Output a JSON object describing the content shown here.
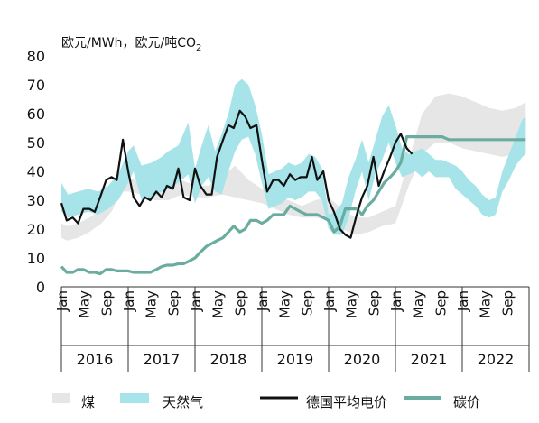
{
  "chart_data": {
    "type": "area",
    "ylabel": "欧元/MWh，欧元/吨CO",
    "ylabel_sub": "2",
    "ylim": [
      0,
      80
    ],
    "yticks": [
      0,
      10,
      20,
      30,
      40,
      50,
      60,
      70,
      80
    ],
    "xlim": [
      2016.0,
      2023.0
    ],
    "month_labels": [
      "Jan",
      "May",
      "Sep"
    ],
    "years": [
      "2016",
      "2017",
      "2018",
      "2019",
      "2020",
      "2021",
      "2022"
    ],
    "legend_position": "bottom",
    "colors": {
      "coal": "#e6e6e6",
      "gas": "#a6e4ea",
      "power": "#111111",
      "carbon": "#6aada0",
      "axis": "#333333"
    },
    "series": [
      {
        "name": "煤",
        "kind": "band",
        "x": [
          2016.0,
          2016.08,
          2016.25,
          2016.42,
          2016.6,
          2016.75,
          2016.9,
          2017.0,
          2017.2,
          2017.4,
          2017.6,
          2017.8,
          2018.0,
          2018.2,
          2018.4,
          2018.6,
          2018.8,
          2019.0,
          2019.2,
          2019.4,
          2019.6,
          2019.8,
          2020.0,
          2020.2,
          2020.4,
          2020.6,
          2020.8,
          2021.0,
          2021.2,
          2021.4,
          2021.6,
          2021.8,
          2022.0,
          2022.2,
          2022.4,
          2022.6,
          2022.8,
          2022.95
        ],
        "low": [
          17,
          16,
          17,
          19,
          22,
          26,
          33,
          33,
          32,
          30,
          30,
          32,
          31,
          31,
          32,
          31,
          30,
          29,
          27,
          25,
          24,
          24,
          23,
          20,
          18,
          19,
          21,
          22,
          35,
          46,
          50,
          50,
          48,
          47,
          46,
          45,
          46,
          47
        ],
        "high": [
          22,
          21,
          22,
          24,
          27,
          33,
          38,
          38,
          36,
          34,
          35,
          37,
          35,
          35,
          38,
          42,
          37,
          34,
          32,
          30,
          28,
          30,
          31,
          27,
          24,
          24,
          26,
          28,
          44,
          60,
          66,
          67,
          66,
          64,
          62,
          61,
          62,
          64
        ]
      },
      {
        "name": "天然气",
        "kind": "band",
        "x": [
          2016.0,
          2016.1,
          2016.25,
          2016.4,
          2016.55,
          2016.7,
          2016.85,
          2017.0,
          2017.08,
          2017.2,
          2017.35,
          2017.5,
          2017.6,
          2017.75,
          2017.9,
          2018.0,
          2018.1,
          2018.2,
          2018.3,
          2018.4,
          2018.5,
          2018.6,
          2018.7,
          2018.8,
          2018.9,
          2019.0,
          2019.1,
          2019.2,
          2019.3,
          2019.4,
          2019.5,
          2019.6,
          2019.7,
          2019.8,
          2019.9,
          2020.0,
          2020.1,
          2020.2,
          2020.3,
          2020.4,
          2020.5,
          2020.6,
          2020.7,
          2020.8,
          2020.9,
          2021.0,
          2021.1,
          2021.2,
          2021.3,
          2021.4,
          2021.5,
          2021.6,
          2021.7,
          2021.8,
          2021.9,
          2022.0,
          2022.1,
          2022.2,
          2022.3,
          2022.4,
          2022.5,
          2022.6,
          2022.7,
          2022.8,
          2022.9,
          2022.95
        ],
        "low": [
          26,
          24,
          25,
          26,
          25,
          27,
          30,
          36,
          40,
          30,
          31,
          33,
          34,
          36,
          39,
          29,
          35,
          38,
          33,
          32,
          40,
          47,
          51,
          52,
          46,
          36,
          27,
          28,
          29,
          31,
          30,
          31,
          33,
          33,
          30,
          20,
          18,
          18,
          24,
          33,
          40,
          30,
          39,
          44,
          50,
          43,
          38,
          39,
          40,
          38,
          40,
          38,
          38,
          38,
          34,
          32,
          30,
          28,
          25,
          24,
          25,
          33,
          37,
          42,
          45,
          46
        ],
        "high": [
          36,
          32,
          33,
          34,
          33,
          35,
          39,
          47,
          49,
          42,
          43,
          45,
          47,
          49,
          57,
          41,
          49,
          56,
          47,
          53,
          60,
          70,
          72,
          70,
          63,
          53,
          39,
          40,
          41,
          43,
          42,
          43,
          46,
          45,
          41,
          25,
          26,
          29,
          38,
          44,
          51,
          43,
          51,
          59,
          63,
          56,
          48,
          46,
          47,
          48,
          46,
          44,
          44,
          43,
          42,
          40,
          37,
          35,
          32,
          30,
          31,
          40,
          46,
          52,
          58,
          59
        ]
      },
      {
        "name": "德国平均电价",
        "kind": "line",
        "x": [
          2016.0,
          2016.08,
          2016.17,
          2016.25,
          2016.33,
          2016.42,
          2016.5,
          2016.58,
          2016.67,
          2016.75,
          2016.83,
          2016.92,
          2017.0,
          2017.08,
          2017.17,
          2017.25,
          2017.33,
          2017.42,
          2017.5,
          2017.58,
          2017.67,
          2017.75,
          2017.83,
          2017.92,
          2018.0,
          2018.08,
          2018.17,
          2018.25,
          2018.33,
          2018.42,
          2018.5,
          2018.58,
          2018.67,
          2018.75,
          2018.83,
          2018.92,
          2019.0,
          2019.08,
          2019.17,
          2019.25,
          2019.33,
          2019.42,
          2019.5,
          2019.58,
          2019.67,
          2019.75,
          2019.83,
          2019.92,
          2020.0,
          2020.08,
          2020.17,
          2020.25,
          2020.33,
          2020.42,
          2020.5,
          2020.58,
          2020.67,
          2020.75,
          2020.83,
          2020.92,
          2021.0,
          2021.08,
          2021.17,
          2021.25
        ],
        "values": [
          29,
          23,
          24,
          22,
          27,
          27,
          26,
          31,
          37,
          38,
          37,
          51,
          40,
          31,
          28,
          31,
          30,
          33,
          31,
          35,
          34,
          41,
          31,
          30,
          41,
          35,
          32,
          32,
          45,
          51,
          56,
          55,
          61,
          59,
          55,
          56,
          44,
          33,
          37,
          37,
          35,
          39,
          37,
          38,
          38,
          45,
          37,
          40,
          30,
          26,
          20,
          18,
          17,
          25,
          31,
          35,
          45,
          35,
          40,
          45,
          50,
          53,
          48,
          46
        ]
      },
      {
        "name": "碳价",
        "kind": "line",
        "x": [
          2016.0,
          2016.08,
          2016.17,
          2016.25,
          2016.33,
          2016.42,
          2016.5,
          2016.58,
          2016.67,
          2016.75,
          2016.83,
          2016.92,
          2017.0,
          2017.08,
          2017.17,
          2017.25,
          2017.33,
          2017.42,
          2017.5,
          2017.58,
          2017.67,
          2017.75,
          2017.83,
          2017.92,
          2018.0,
          2018.08,
          2018.17,
          2018.25,
          2018.33,
          2018.42,
          2018.5,
          2018.58,
          2018.67,
          2018.75,
          2018.83,
          2018.92,
          2019.0,
          2019.08,
          2019.17,
          2019.25,
          2019.33,
          2019.42,
          2019.5,
          2019.58,
          2019.67,
          2019.75,
          2019.83,
          2019.92,
          2020.0,
          2020.08,
          2020.17,
          2020.25,
          2020.33,
          2020.42,
          2020.5,
          2020.58,
          2020.67,
          2020.75,
          2020.83,
          2020.92,
          2021.0,
          2021.08,
          2021.17,
          2021.25,
          2021.33,
          2021.42,
          2021.5,
          2021.6,
          2021.7,
          2021.8,
          2021.9,
          2022.0,
          2022.2,
          2022.4,
          2022.6,
          2022.8,
          2022.95
        ],
        "values": [
          7,
          5,
          5,
          6,
          6,
          5,
          5,
          4.5,
          6,
          6,
          5.5,
          5.5,
          5.5,
          5,
          5,
          5,
          5,
          6,
          7,
          7.5,
          7.5,
          8,
          8,
          9,
          10,
          12,
          14,
          15,
          16,
          17,
          19,
          21,
          19,
          20,
          23,
          23,
          22,
          23,
          25,
          25,
          25,
          28,
          27,
          26,
          25,
          25,
          25,
          24,
          23,
          19,
          21,
          27,
          27,
          27,
          25,
          28,
          30,
          33,
          36,
          38,
          40,
          43,
          52,
          52,
          52,
          52,
          52,
          52,
          52,
          51,
          51,
          51,
          51,
          51,
          51,
          51,
          51
        ]
      }
    ]
  }
}
